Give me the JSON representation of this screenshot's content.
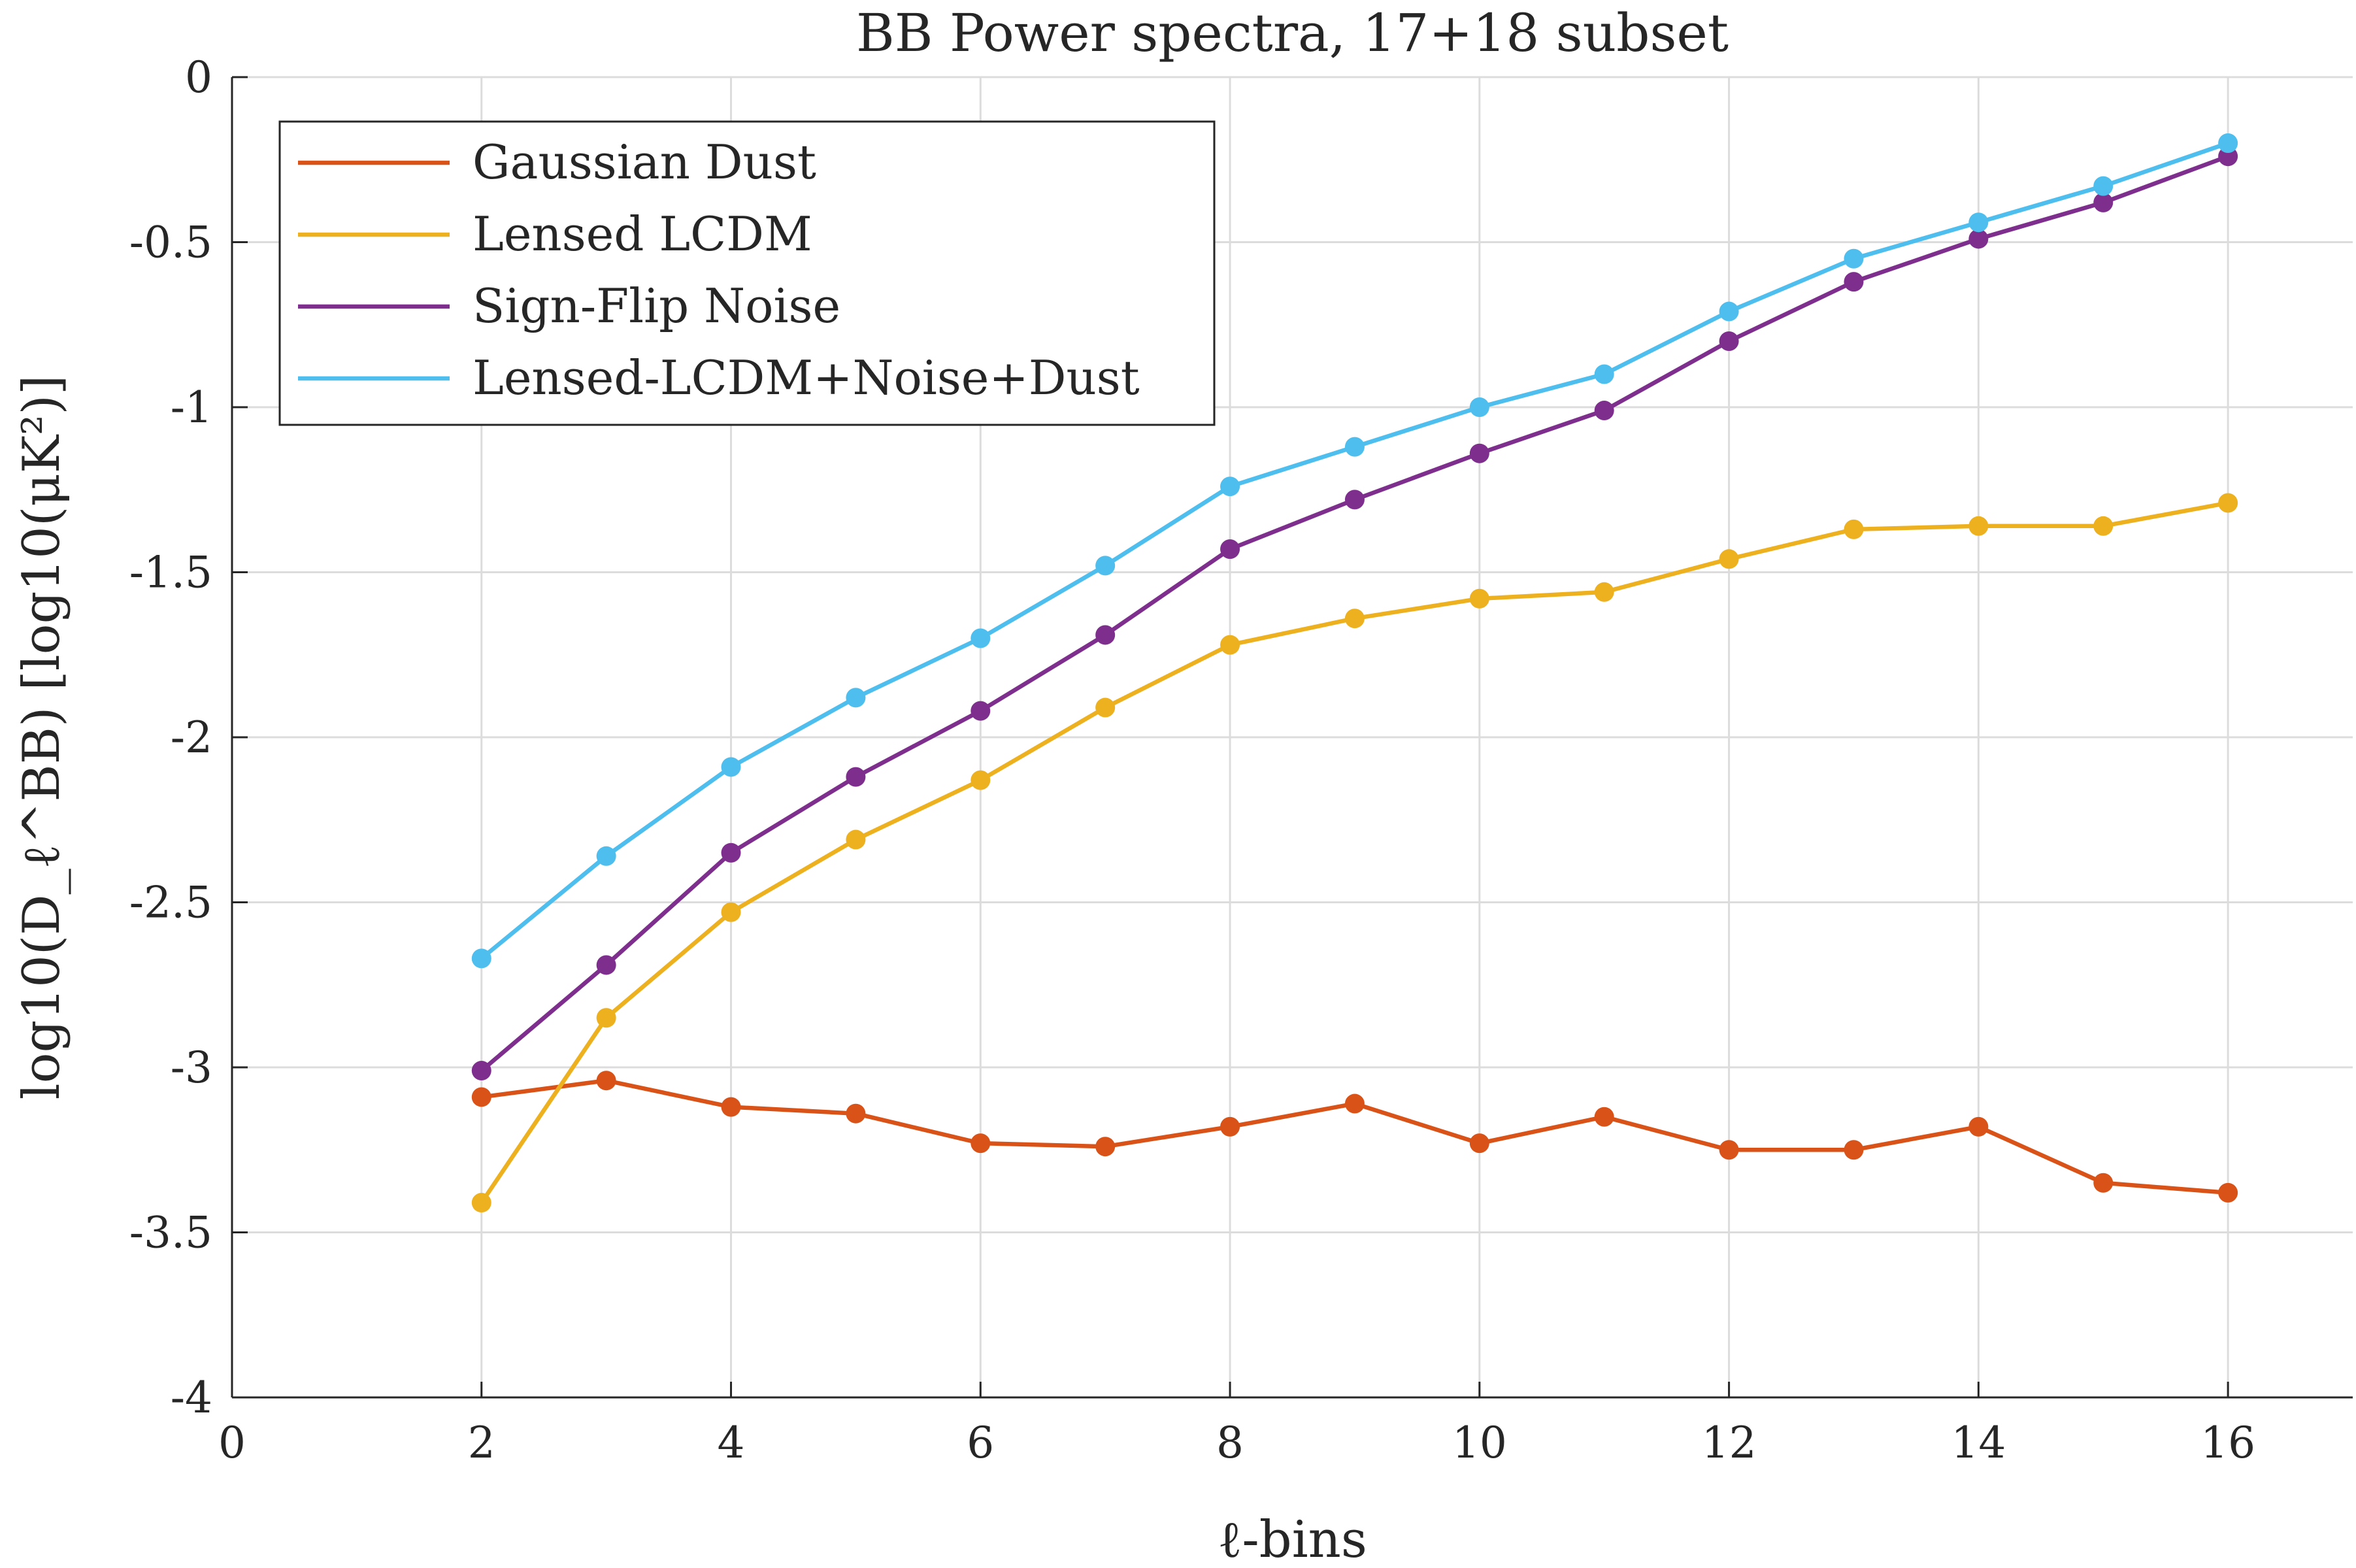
{
  "chart_data": {
    "type": "line",
    "title": "BB Power spectra, 17+18 subset",
    "xlabel": "ℓ-bins",
    "ylabel": "log10(D_ℓ^BB) [log10(μK²)]",
    "xlim": [
      0,
      17
    ],
    "ylim": [
      -4,
      0
    ],
    "x_ticks": [
      "0",
      "2",
      "4",
      "6",
      "8",
      "10",
      "12",
      "14",
      "16"
    ],
    "x_tick_values": [
      0,
      2,
      4,
      6,
      8,
      10,
      12,
      14,
      16
    ],
    "y_ticks": [
      "0",
      "-0.5",
      "-1",
      "-1.5",
      "-2",
      "-2.5",
      "-3",
      "-3.5",
      "-4"
    ],
    "y_tick_values": [
      0,
      -0.5,
      -1,
      -1.5,
      -2,
      -2.5,
      -3,
      -3.5,
      -4
    ],
    "grid": true,
    "legend_position": "top-left",
    "x": [
      2,
      3,
      4,
      5,
      6,
      7,
      8,
      9,
      10,
      11,
      12,
      13,
      14,
      15,
      16
    ],
    "series": [
      {
        "name": "Gaussian Dust",
        "color": "#D95319",
        "values": [
          -3.09,
          -3.04,
          -3.12,
          -3.14,
          -3.23,
          -3.24,
          -3.18,
          -3.11,
          -3.23,
          -3.15,
          -3.25,
          -3.25,
          -3.18,
          -3.35,
          -3.38
        ]
      },
      {
        "name": "Lensed LCDM",
        "color": "#EDB120",
        "values": [
          -3.41,
          -2.85,
          -2.53,
          -2.31,
          -2.13,
          -1.91,
          -1.72,
          -1.64,
          -1.58,
          -1.56,
          -1.46,
          -1.37,
          -1.36,
          -1.36,
          -1.29
        ]
      },
      {
        "name": "Sign-Flip Noise",
        "color": "#7E2F8E",
        "values": [
          -3.01,
          -2.69,
          -2.35,
          -2.12,
          -1.92,
          -1.69,
          -1.43,
          -1.28,
          -1.14,
          -1.01,
          -0.8,
          -0.62,
          -0.49,
          -0.38,
          -0.24
        ]
      },
      {
        "name": "Lensed-LCDM+Noise+Dust",
        "color": "#4DBEEE",
        "values": [
          -2.67,
          -2.36,
          -2.09,
          -1.88,
          -1.7,
          -1.48,
          -1.24,
          -1.12,
          -1.0,
          -0.9,
          -0.71,
          -0.55,
          -0.44,
          -0.33,
          -0.2
        ]
      }
    ]
  }
}
